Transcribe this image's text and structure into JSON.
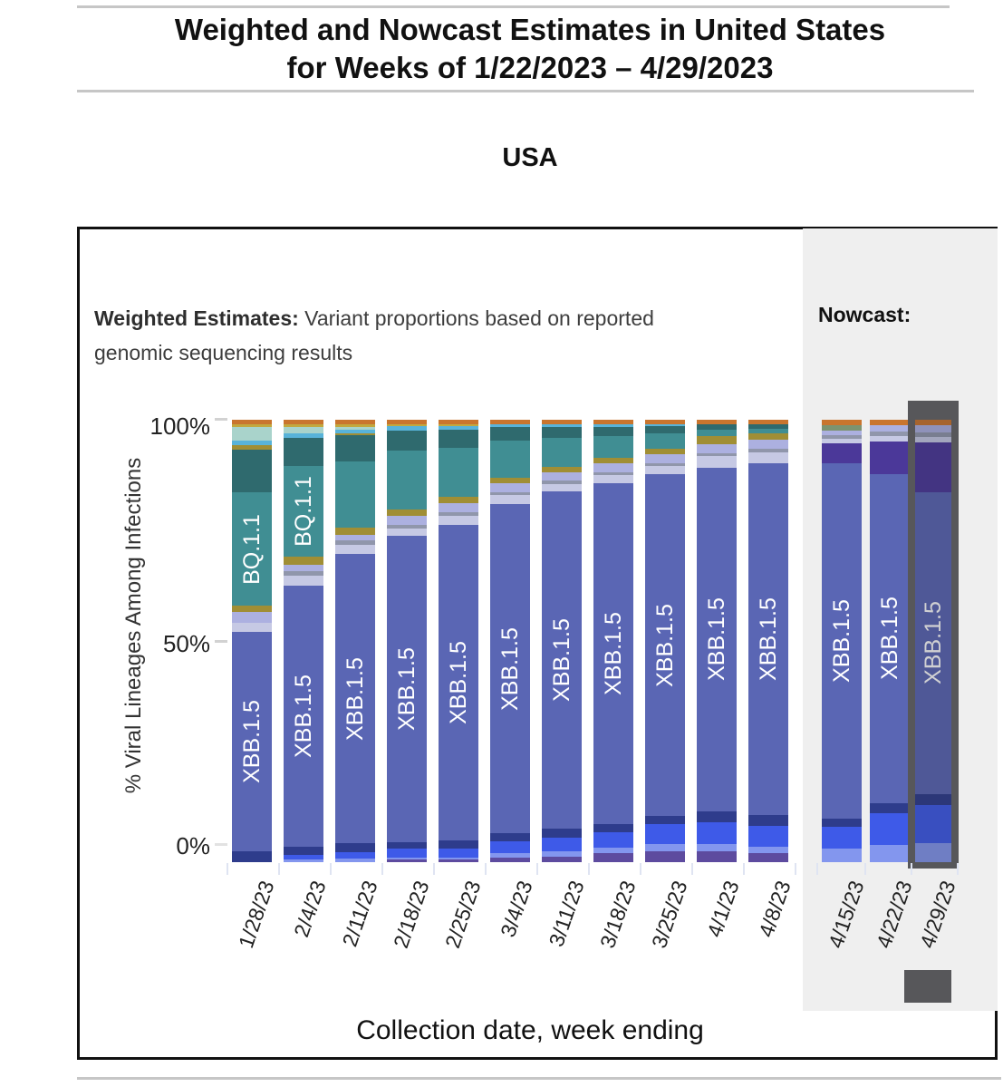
{
  "page": {
    "title_line1": "Weighted and Nowcast Estimates in United States",
    "title_line2": "for Weeks of 1/22/2023 – 4/29/2023",
    "subtitle": "USA"
  },
  "annotations": {
    "weighted_bold": "Weighted Estimates:",
    "weighted_rest": " Variant proportions based on reported genomic sequencing results",
    "nowcast_bold": "Nowcast:"
  },
  "chart_data": {
    "type": "bar",
    "stacked": true,
    "title": "Weighted and Nowcast Estimates in United States for Weeks of 1/22/2023 – 4/29/2023",
    "subtitle": "USA",
    "xlabel": "Collection date, week ending",
    "ylabel": "% Viral Lineages Among Infections",
    "ylim": [
      0,
      100
    ],
    "yticks": [
      "100%",
      "50%",
      "0%"
    ],
    "grid": false,
    "legend": "none (labels drawn inside bars)",
    "panels": [
      {
        "name": "Weighted Estimates",
        "weeks": "1/28/23 - 4/8/23"
      },
      {
        "name": "Nowcast",
        "weeks": "4/15/23 - 4/29/23"
      }
    ],
    "visible_lineage_labels": [
      "BQ.1.1",
      "XBB.1.5"
    ],
    "colors": {
      "orange": "#c9752e",
      "gold": "#c2a83e",
      "pale_teal": "#a9d3cb",
      "cyan": "#58b3d9",
      "olive": "#a08e35",
      "dark_teal": "#2f6a6e",
      "teal": "#408e93",
      "green": "#7d9370",
      "lavender": "#acb0e0",
      "gray": "#9096ab",
      "pale_lavender": "#c6c9e4",
      "blue": "#5a66b4",
      "navy": "#2e3c8c",
      "bright_blue": "#3e5ae8",
      "periwinkle": "#8396ee",
      "violet": "#5d4b9f",
      "dark_purple": "#4b3899"
    },
    "segment_note": "segments listed top-to-bottom per bar; values are estimated percent of viral lineages among infections",
    "bars": [
      {
        "date": "1/28/23",
        "panel": "weighted",
        "segments": [
          [
            "orange",
            1
          ],
          [
            "gold",
            0.7
          ],
          [
            "pale_teal",
            3
          ],
          [
            "cyan",
            1
          ],
          [
            "olive",
            1
          ],
          [
            "dark_teal",
            9.8
          ],
          [
            "teal",
            25.5
          ],
          [
            "olive",
            1.5
          ],
          [
            "lavender",
            2.5
          ],
          [
            "pale_lavender",
            2
          ],
          [
            "blue",
            49.5
          ],
          [
            "navy",
            2.5
          ]
        ],
        "labels": [
          {
            "text": "BQ.1.1",
            "segment": "teal"
          },
          {
            "text": "XBB.1.5",
            "segment": "blue"
          }
        ]
      },
      {
        "date": "2/4/23",
        "panel": "weighted",
        "segments": [
          [
            "orange",
            1
          ],
          [
            "gold",
            0.6
          ],
          [
            "pale_teal",
            1.4
          ],
          [
            "cyan",
            1.2
          ],
          [
            "dark_teal",
            6.3
          ],
          [
            "teal",
            20.5
          ],
          [
            "olive",
            1.7
          ],
          [
            "lavender",
            1.5
          ],
          [
            "gray",
            1
          ],
          [
            "pale_lavender",
            2.3
          ],
          [
            "blue",
            59
          ],
          [
            "navy",
            1.8
          ],
          [
            "bright_blue",
            1.2
          ],
          [
            "periwinkle",
            0.5
          ]
        ],
        "labels": [
          {
            "text": "BQ.1.1",
            "segment": "teal"
          },
          {
            "text": "XBB.1.5",
            "segment": "blue"
          }
        ]
      },
      {
        "date": "2/11/23",
        "panel": "weighted",
        "segments": [
          [
            "orange",
            1
          ],
          [
            "gold",
            0.6
          ],
          [
            "pale_teal",
            0.6
          ],
          [
            "cyan",
            0.8
          ],
          [
            "olive",
            0.4
          ],
          [
            "dark_teal",
            6
          ],
          [
            "teal",
            15
          ],
          [
            "olive",
            1.6
          ],
          [
            "lavender",
            1.2
          ],
          [
            "gray",
            1
          ],
          [
            "pale_lavender",
            2.2
          ],
          [
            "blue",
            65.4
          ],
          [
            "navy",
            2
          ],
          [
            "bright_blue",
            1.4
          ],
          [
            "periwinkle",
            0.8
          ]
        ],
        "labels": [
          {
            "text": "XBB.1.5",
            "segment": "blue"
          }
        ]
      },
      {
        "date": "2/18/23",
        "panel": "weighted",
        "segments": [
          [
            "orange",
            1
          ],
          [
            "gold",
            0.5
          ],
          [
            "cyan",
            1
          ],
          [
            "dark_teal",
            4.5
          ],
          [
            "teal",
            13.2
          ],
          [
            "olive",
            1.5
          ],
          [
            "lavender",
            2
          ],
          [
            "gray",
            0.8
          ],
          [
            "pale_lavender",
            1.7
          ],
          [
            "blue",
            69.3
          ],
          [
            "navy",
            1.5
          ],
          [
            "bright_blue",
            2
          ],
          [
            "periwinkle",
            0.5
          ],
          [
            "violet",
            0.5
          ]
        ],
        "labels": [
          {
            "text": "XBB.1.5",
            "segment": "blue"
          }
        ]
      },
      {
        "date": "2/25/23",
        "panel": "weighted",
        "segments": [
          [
            "orange",
            1
          ],
          [
            "gold",
            0.5
          ],
          [
            "cyan",
            0.8
          ],
          [
            "dark_teal",
            4
          ],
          [
            "teal",
            11.2
          ],
          [
            "olive",
            1.3
          ],
          [
            "lavender",
            2.2
          ],
          [
            "gray",
            0.8
          ],
          [
            "pale_lavender",
            2
          ],
          [
            "blue",
            71.3
          ],
          [
            "navy",
            1.8
          ],
          [
            "bright_blue",
            2.1
          ],
          [
            "periwinkle",
            0.5
          ],
          [
            "violet",
            0.5
          ]
        ],
        "labels": [
          {
            "text": "XBB.1.5",
            "segment": "blue"
          }
        ]
      },
      {
        "date": "3/4/23",
        "panel": "weighted",
        "segments": [
          [
            "orange",
            1
          ],
          [
            "cyan",
            0.7
          ],
          [
            "dark_teal",
            3
          ],
          [
            "teal",
            8.5
          ],
          [
            "olive",
            1.2
          ],
          [
            "lavender",
            2
          ],
          [
            "gray",
            0.7
          ],
          [
            "pale_lavender",
            1.9
          ],
          [
            "blue",
            74.5
          ],
          [
            "navy",
            1.8
          ],
          [
            "bright_blue",
            2.7
          ],
          [
            "periwinkle",
            1
          ],
          [
            "violet",
            1
          ]
        ],
        "labels": [
          {
            "text": "XBB.1.5",
            "segment": "blue"
          }
        ]
      },
      {
        "date": "3/11/23",
        "panel": "weighted",
        "segments": [
          [
            "orange",
            1
          ],
          [
            "cyan",
            0.6
          ],
          [
            "dark_teal",
            2.5
          ],
          [
            "teal",
            6.5
          ],
          [
            "olive",
            1.2
          ],
          [
            "lavender",
            2
          ],
          [
            "gray",
            0.7
          ],
          [
            "pale_lavender",
            1.8
          ],
          [
            "blue",
            76.2
          ],
          [
            "navy",
            2
          ],
          [
            "bright_blue",
            3
          ],
          [
            "periwinkle",
            1.2
          ],
          [
            "violet",
            1.3
          ]
        ],
        "labels": [
          {
            "text": "XBB.1.5",
            "segment": "blue"
          }
        ]
      },
      {
        "date": "3/18/23",
        "panel": "weighted",
        "segments": [
          [
            "orange",
            1
          ],
          [
            "cyan",
            0.6
          ],
          [
            "dark_teal",
            2
          ],
          [
            "teal",
            5
          ],
          [
            "olive",
            1.2
          ],
          [
            "lavender",
            2
          ],
          [
            "gray",
            0.7
          ],
          [
            "pale_lavender",
            1.8
          ],
          [
            "blue",
            77.2
          ],
          [
            "navy",
            1.8
          ],
          [
            "bright_blue",
            3.5
          ],
          [
            "periwinkle",
            1.2
          ],
          [
            "violet",
            2
          ]
        ],
        "labels": [
          {
            "text": "XBB.1.5",
            "segment": "blue"
          }
        ]
      },
      {
        "date": "3/25/23",
        "panel": "weighted",
        "segments": [
          [
            "orange",
            1
          ],
          [
            "cyan",
            0.5
          ],
          [
            "dark_teal",
            1.5
          ],
          [
            "teal",
            3.5
          ],
          [
            "olive",
            1.3
          ],
          [
            "lavender",
            2
          ],
          [
            "gray",
            0.7
          ],
          [
            "pale_lavender",
            1.9
          ],
          [
            "blue",
            77.1
          ],
          [
            "navy",
            2
          ],
          [
            "bright_blue",
            4.5
          ],
          [
            "periwinkle",
            1.5
          ],
          [
            "violet",
            2.5
          ]
        ],
        "labels": [
          {
            "text": "XBB.1.5",
            "segment": "blue"
          }
        ]
      },
      {
        "date": "4/1/23",
        "panel": "weighted",
        "segments": [
          [
            "orange",
            1
          ],
          [
            "dark_teal",
            1.2
          ],
          [
            "teal",
            1.5
          ],
          [
            "olive",
            1.8
          ],
          [
            "lavender",
            2
          ],
          [
            "gray",
            0.8
          ],
          [
            "pale_lavender",
            2.5
          ],
          [
            "blue",
            77.7
          ],
          [
            "navy",
            2.5
          ],
          [
            "bright_blue",
            5
          ],
          [
            "periwinkle",
            1.5
          ],
          [
            "violet",
            2.5
          ]
        ],
        "labels": [
          {
            "text": "XBB.1.5",
            "segment": "blue"
          }
        ]
      },
      {
        "date": "4/8/23",
        "panel": "weighted",
        "segments": [
          [
            "orange",
            1
          ],
          [
            "dark_teal",
            1
          ],
          [
            "teal",
            1
          ],
          [
            "olive",
            1.5
          ],
          [
            "lavender",
            2
          ],
          [
            "gray",
            0.8
          ],
          [
            "pale_lavender",
            2.5
          ],
          [
            "blue",
            79.5
          ],
          [
            "navy",
            2.5
          ],
          [
            "bright_blue",
            4.7
          ],
          [
            "periwinkle",
            1.5
          ],
          [
            "violet",
            2
          ]
        ],
        "labels": [
          {
            "text": "XBB.1.5",
            "segment": "blue"
          }
        ]
      },
      {
        "date": "4/15/23",
        "panel": "nowcast",
        "segments": [
          [
            "orange",
            1.2
          ],
          [
            "green",
            1.2
          ],
          [
            "lavender",
            1
          ],
          [
            "gray",
            1
          ],
          [
            "pale_lavender",
            1
          ],
          [
            "dark_purple",
            4.4
          ],
          [
            "blue",
            80.3
          ],
          [
            "navy",
            2
          ],
          [
            "bright_blue",
            4.9
          ],
          [
            "periwinkle",
            3
          ]
        ],
        "labels": [
          {
            "text": "XBB.1.5",
            "segment": "blue"
          }
        ]
      },
      {
        "date": "4/22/23",
        "panel": "nowcast",
        "segments": [
          [
            "orange",
            1.2
          ],
          [
            "lavender",
            1.4
          ],
          [
            "gray",
            1
          ],
          [
            "pale_lavender",
            1.4
          ],
          [
            "dark_purple",
            7.2
          ],
          [
            "blue",
            74.5
          ],
          [
            "navy",
            2.3
          ],
          [
            "bright_blue",
            7.2
          ],
          [
            "periwinkle",
            3.8
          ]
        ],
        "labels": [
          {
            "text": "XBB.1.5",
            "segment": "blue"
          }
        ]
      },
      {
        "date": "4/29/23",
        "panel": "nowcast",
        "selected": true,
        "segments": [
          [
            "orange",
            1.2
          ],
          [
            "lavender",
            1.6
          ],
          [
            "gray",
            1
          ],
          [
            "pale_lavender",
            1.3
          ],
          [
            "dark_purple",
            11.3
          ],
          [
            "blue",
            68.2
          ],
          [
            "navy",
            2.5
          ],
          [
            "bright_blue",
            8.6
          ],
          [
            "periwinkle",
            4.3
          ]
        ],
        "labels": [
          {
            "text": "XBB.1.5",
            "segment": "blue"
          }
        ]
      }
    ]
  }
}
